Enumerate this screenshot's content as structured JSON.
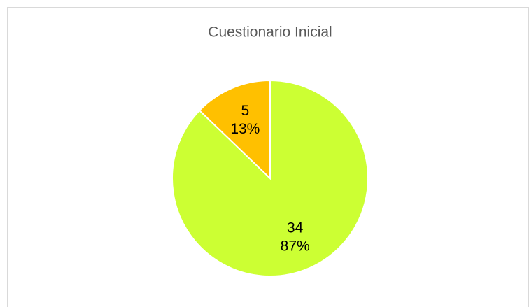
{
  "chart_data": {
    "type": "pie",
    "title": "Cuestionario Inicial",
    "values": [
      34,
      5
    ],
    "percent_labels": [
      "87%",
      "13%"
    ],
    "colors": [
      "#ccff33",
      "#ffc000"
    ]
  }
}
